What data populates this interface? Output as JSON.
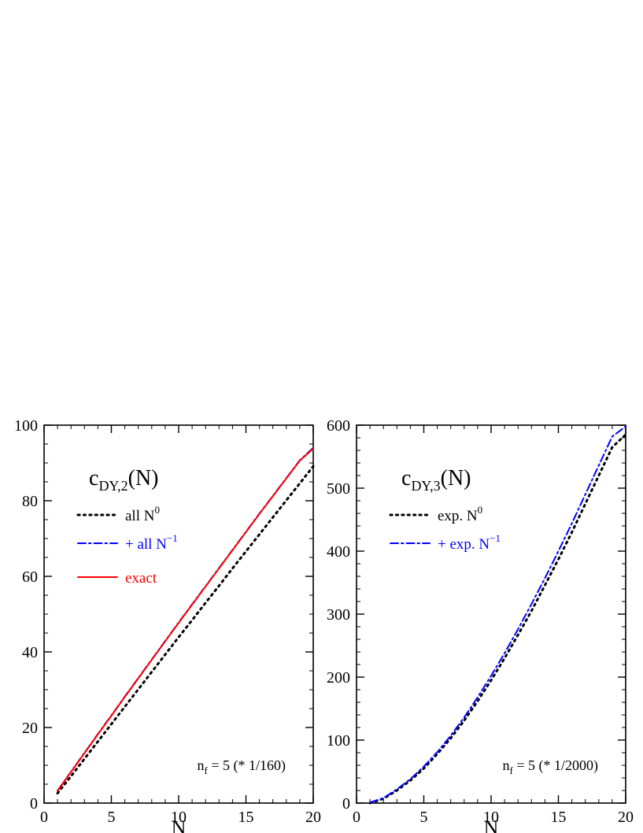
{
  "chart_data": [
    {
      "type": "line",
      "title": "c",
      "title_sub": "DY,2",
      "title_suffix": "(N)",
      "xlabel": "N",
      "ylabel": "",
      "xlim": [
        0,
        20
      ],
      "ylim": [
        0,
        100
      ],
      "xticks": [
        0,
        5,
        10,
        15,
        20
      ],
      "yticks": [
        0,
        20,
        40,
        60,
        80,
        100
      ],
      "x_minor_step": 1,
      "y_minor_step": 5,
      "grid": false,
      "legend_position": "top-left",
      "annotation": {
        "pre": "n",
        "sub": "f",
        "post": " = 5  (* 1/160)"
      },
      "series": [
        {
          "label": "all N",
          "label_sup": "0",
          "color": "#000000",
          "style": "dotted",
          "x": [
            1,
            2,
            3,
            4,
            5,
            6,
            7,
            8,
            9,
            10,
            11,
            12,
            13,
            14,
            15,
            16,
            17,
            18,
            19,
            20
          ],
          "y": [
            2.6,
            7.1,
            11.7,
            16.3,
            20.9,
            25.5,
            30.1,
            34.7,
            39.3,
            43.9,
            48.4,
            53.0,
            57.5,
            62.1,
            66.6,
            71.1,
            75.6,
            80.1,
            84.6,
            89.1
          ]
        },
        {
          "label": "+ all N",
          "label_sup": "−1",
          "color": "#0000ff",
          "style": "dashdot",
          "x": [
            1,
            2,
            3,
            4,
            5,
            6,
            7,
            8,
            9,
            10,
            11,
            12,
            13,
            14,
            15,
            16,
            17,
            18,
            19,
            20
          ],
          "y": [
            3.3,
            8.3,
            13.3,
            18.3,
            23.2,
            28.2,
            33.1,
            38.0,
            42.9,
            47.8,
            52.6,
            57.4,
            62.2,
            67.0,
            71.8,
            76.6,
            81.3,
            86.0,
            90.7,
            94.0
          ]
        },
        {
          "label": "exact",
          "label_sup": "",
          "color": "#ff0000",
          "style": "solid",
          "x": [
            1,
            2,
            3,
            4,
            5,
            6,
            7,
            8,
            9,
            10,
            11,
            12,
            13,
            14,
            15,
            16,
            17,
            18,
            19,
            20
          ],
          "y": [
            3.2,
            8.2,
            13.2,
            18.2,
            23.1,
            28.1,
            33.0,
            37.9,
            42.8,
            47.7,
            52.5,
            57.3,
            62.1,
            66.9,
            71.7,
            76.5,
            81.2,
            85.9,
            90.6,
            93.8
          ]
        }
      ]
    },
    {
      "type": "line",
      "title": "c",
      "title_sub": "DY,3",
      "title_suffix": "(N)",
      "xlabel": "N",
      "ylabel": "",
      "xlim": [
        0,
        20
      ],
      "ylim": [
        0,
        600
      ],
      "xticks": [
        0,
        5,
        10,
        15,
        20
      ],
      "yticks": [
        0,
        100,
        200,
        300,
        400,
        500,
        600
      ],
      "x_minor_step": 1,
      "y_minor_step": 20,
      "grid": false,
      "legend_position": "top-left",
      "annotation": {
        "pre": "n",
        "sub": "f",
        "post": " = 5  (* 1/2000)"
      },
      "series": [
        {
          "label": "exp. N",
          "label_sup": "0",
          "color": "#000000",
          "style": "dotted",
          "x": [
            1,
            2,
            3,
            4,
            5,
            6,
            7,
            8,
            9,
            10,
            11,
            12,
            13,
            14,
            15,
            16,
            17,
            18,
            19,
            20
          ],
          "y": [
            0,
            7,
            20,
            36,
            55,
            78,
            103,
            131,
            162,
            195,
            230,
            267,
            305,
            346,
            387,
            430,
            475,
            520,
            565,
            585
          ]
        },
        {
          "label": "+ exp. N",
          "label_sup": "−1",
          "color": "#0000ff",
          "style": "dashdot",
          "x": [
            1,
            2,
            3,
            4,
            5,
            6,
            7,
            8,
            9,
            10,
            11,
            12,
            13,
            14,
            15,
            16,
            17,
            18,
            19,
            20
          ],
          "y": [
            1,
            8,
            22,
            38,
            58,
            81,
            107,
            136,
            168,
            202,
            238,
            276,
            316,
            357,
            400,
            444,
            490,
            536,
            582,
            598
          ]
        }
      ]
    }
  ]
}
